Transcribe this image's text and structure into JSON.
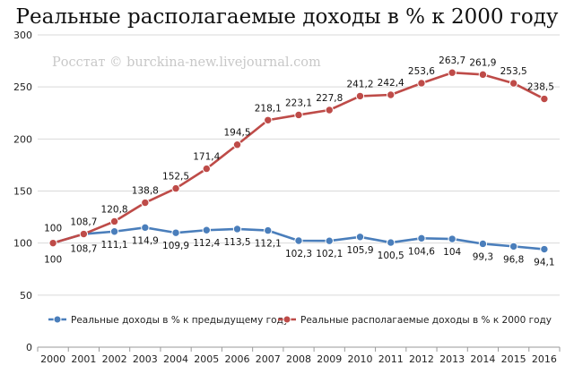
{
  "chart_data": {
    "type": "line",
    "title": "Реальные располагаемые доходы в % к 2000 году",
    "watermark": "Росстат © burckina-new.livejournal.com",
    "categories": [
      "2000",
      "2001",
      "2002",
      "2003",
      "2004",
      "2005",
      "2006",
      "2007",
      "2008",
      "2009",
      "2010",
      "2011",
      "2012",
      "2013",
      "2014",
      "2015",
      "2016"
    ],
    "ylim": [
      0,
      300
    ],
    "yticks": [
      "0",
      "50",
      "100",
      "150",
      "200",
      "250",
      "300"
    ],
    "grid": true,
    "legend_position": "bottom",
    "series": [
      {
        "name": "Реальные доходы в % к предыдущему году",
        "color": "#4a7ebb",
        "values": [
          100,
          108.7,
          111.1,
          114.9,
          109.9,
          112.4,
          113.5,
          112.1,
          102.3,
          102.1,
          105.9,
          100.5,
          104.6,
          104,
          99.3,
          96.8,
          94.1
        ],
        "labels": [
          "100",
          "108,7",
          "111,1",
          "114,9",
          "109,9",
          "112,4",
          "113,5",
          "112,1",
          "102,3",
          "102,1",
          "105,9",
          "100,5",
          "104,6",
          "104",
          "99,3",
          "96,8",
          "94,1"
        ]
      },
      {
        "name": "Реальные располагаемые доходы в % к 2000 году",
        "color": "#be4b48",
        "values": [
          100,
          108.7,
          120.8,
          138.8,
          152.5,
          171.4,
          194.5,
          218.1,
          223.1,
          227.8,
          241.2,
          242.4,
          253.6,
          263.7,
          261.9,
          253.5,
          238.5
        ],
        "labels": [
          "100",
          "108,7",
          "120,8",
          "138,8",
          "152,5",
          "171,4",
          "194,5",
          "218,1",
          "223,1",
          "227,8",
          "241,2",
          "242,4",
          "253,6",
          "263,7",
          "261,9",
          "253,5",
          "238,5"
        ]
      }
    ]
  }
}
